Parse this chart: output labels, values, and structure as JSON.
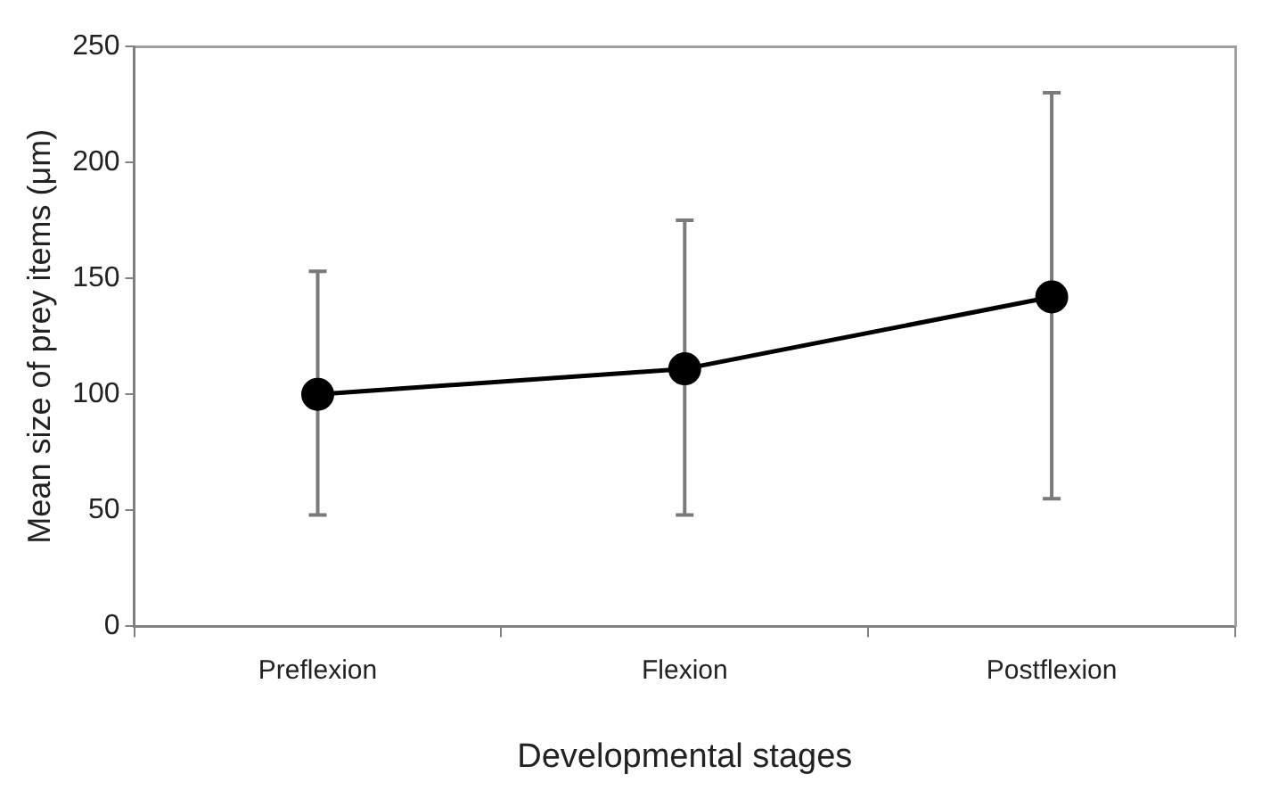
{
  "chart_data": {
    "type": "line",
    "xlabel": "Developmental stages",
    "ylabel": "Mean size of prey items (μm)",
    "categories": [
      "Preflexion",
      "Flexion",
      "Postflexion"
    ],
    "series": [
      {
        "color": "#000000",
        "values": [
          100,
          111,
          142
        ],
        "errors": [
          [
            48,
            153
          ],
          [
            48,
            175
          ],
          [
            55,
            230
          ]
        ]
      }
    ],
    "ylim": [
      0,
      250
    ],
    "yticks": [
      0,
      50,
      100,
      150,
      200,
      250
    ],
    "grid": false,
    "legend": false,
    "marker": "circle",
    "line_style": "solid"
  }
}
